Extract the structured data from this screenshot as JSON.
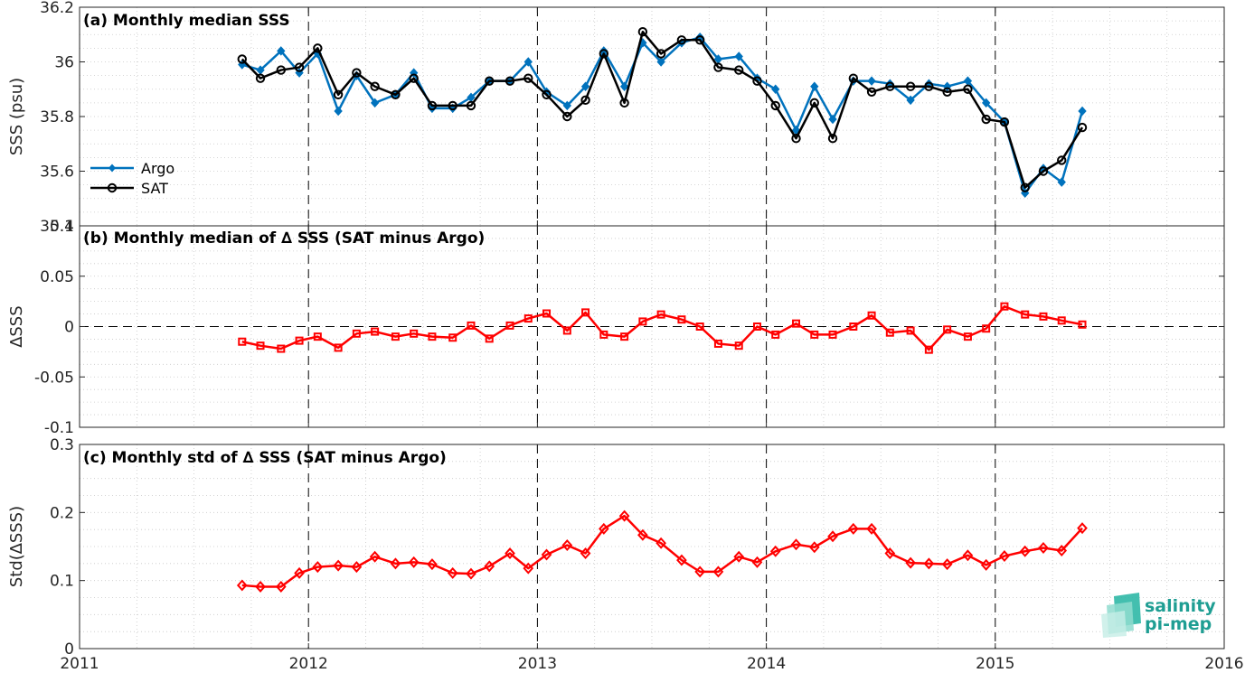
{
  "chart_data": [
    {
      "type": "line",
      "title": "(a) Monthly median SSS",
      "xlabel": "",
      "ylabel": "SSS (psu)",
      "xlim": [
        2011,
        2016
      ],
      "ylim": [
        35.4,
        36.2
      ],
      "xticks": [
        2011,
        2012,
        2013,
        2014,
        2015,
        2016
      ],
      "xtick_labels": [
        "2011",
        "2012",
        "2013",
        "2014",
        "2015",
        "2016"
      ],
      "yticks": [
        35.4,
        35.6,
        35.8,
        36.0,
        36.2
      ],
      "ytick_labels": [
        "35.4",
        "35.6",
        "35.8",
        "36",
        "36.2"
      ],
      "grid": true,
      "legend_position": "bottom-left",
      "x": [
        2011.71,
        2011.79,
        2011.88,
        2011.96,
        2012.04,
        2012.13,
        2012.21,
        2012.29,
        2012.38,
        2012.46,
        2012.54,
        2012.63,
        2012.71,
        2012.79,
        2012.88,
        2012.96,
        2013.04,
        2013.13,
        2013.21,
        2013.29,
        2013.38,
        2013.46,
        2013.54,
        2013.63,
        2013.71,
        2013.79,
        2013.88,
        2013.96,
        2014.04,
        2014.13,
        2014.21,
        2014.29,
        2014.38,
        2014.46,
        2014.54,
        2014.63,
        2014.71,
        2014.79,
        2014.88,
        2014.96,
        2015.04,
        2015.13,
        2015.21,
        2015.29,
        2015.38
      ],
      "series": [
        {
          "name": "Argo",
          "color": "#0072bd",
          "marker": "diamond",
          "values": [
            35.99,
            35.97,
            36.04,
            35.96,
            36.03,
            35.82,
            35.95,
            35.85,
            35.88,
            35.96,
            35.83,
            35.83,
            35.87,
            35.93,
            35.93,
            36.0,
            35.89,
            35.84,
            35.91,
            36.04,
            35.91,
            36.07,
            36.0,
            36.07,
            36.09,
            36.01,
            36.02,
            35.94,
            35.9,
            35.75,
            35.91,
            35.79,
            35.93,
            35.93,
            35.92,
            35.86,
            35.92,
            35.91,
            35.93,
            35.85,
            35.78,
            35.52,
            35.61,
            35.56,
            35.82
          ]
        },
        {
          "name": "SAT",
          "color": "#000000",
          "marker": "circle",
          "values": [
            36.01,
            35.94,
            35.97,
            35.98,
            36.05,
            35.88,
            35.96,
            35.91,
            35.88,
            35.94,
            35.84,
            35.84,
            35.84,
            35.93,
            35.93,
            35.94,
            35.88,
            35.8,
            35.86,
            36.03,
            35.85,
            36.11,
            36.03,
            36.08,
            36.08,
            35.98,
            35.97,
            35.93,
            35.84,
            35.72,
            35.85,
            35.72,
            35.94,
            35.89,
            35.91,
            35.91,
            35.91,
            35.89,
            35.9,
            35.79,
            35.78,
            35.54,
            35.6,
            35.64,
            35.76
          ]
        }
      ]
    },
    {
      "type": "line",
      "title": "(b) Monthly median of ∆ SSS (SAT minus Argo)",
      "xlabel": "",
      "ylabel": "∆SSS",
      "xlim": [
        2011,
        2016
      ],
      "ylim": [
        -0.1,
        0.1
      ],
      "xticks": [
        2011,
        2012,
        2013,
        2014,
        2015,
        2016
      ],
      "yticks": [
        -0.1,
        -0.05,
        0,
        0.05,
        0.1
      ],
      "ytick_labels": [
        "-0.1",
        "-0.05",
        "0",
        "0.05",
        "0.1"
      ],
      "grid": true,
      "x": [
        2011.71,
        2011.79,
        2011.88,
        2011.96,
        2012.04,
        2012.13,
        2012.21,
        2012.29,
        2012.38,
        2012.46,
        2012.54,
        2012.63,
        2012.71,
        2012.79,
        2012.88,
        2012.96,
        2013.04,
        2013.13,
        2013.21,
        2013.29,
        2013.38,
        2013.46,
        2013.54,
        2013.63,
        2013.71,
        2013.79,
        2013.88,
        2013.96,
        2014.04,
        2014.13,
        2014.21,
        2014.29,
        2014.38,
        2014.46,
        2014.54,
        2014.63,
        2014.71,
        2014.79,
        2014.88,
        2014.96,
        2015.04,
        2015.13,
        2015.21,
        2015.29,
        2015.38
      ],
      "series": [
        {
          "color": "#ff0000",
          "marker": "square",
          "values": [
            -0.015,
            -0.019,
            -0.022,
            -0.014,
            -0.01,
            -0.021,
            -0.007,
            -0.005,
            -0.01,
            -0.007,
            -0.01,
            -0.011,
            0.001,
            -0.012,
            0.001,
            0.008,
            0.013,
            -0.004,
            0.014,
            -0.008,
            -0.01,
            0.005,
            0.012,
            0.007,
            0.0,
            -0.017,
            -0.019,
            0.0,
            -0.008,
            0.003,
            -0.008,
            -0.008,
            0.0,
            0.011,
            -0.006,
            -0.004,
            -0.023,
            -0.003,
            -0.01,
            -0.002,
            0.02,
            0.012,
            0.01,
            0.006,
            0.002
          ]
        }
      ]
    },
    {
      "type": "line",
      "title": "(c) Monthly std of ∆ SSS (SAT minus Argo)",
      "xlabel": "",
      "ylabel": "Std(∆SSS)",
      "xlim": [
        2011,
        2016
      ],
      "ylim": [
        0,
        0.3
      ],
      "xticks": [
        2011,
        2012,
        2013,
        2014,
        2015,
        2016
      ],
      "xtick_labels": [
        "2011",
        "2012",
        "2013",
        "2014",
        "2015",
        "2016"
      ],
      "yticks": [
        0,
        0.1,
        0.2,
        0.3
      ],
      "ytick_labels": [
        "0",
        "0.1",
        "0.2",
        "0.3"
      ],
      "grid": true,
      "x": [
        2011.71,
        2011.79,
        2011.88,
        2011.96,
        2012.04,
        2012.13,
        2012.21,
        2012.29,
        2012.38,
        2012.46,
        2012.54,
        2012.63,
        2012.71,
        2012.79,
        2012.88,
        2012.96,
        2013.04,
        2013.13,
        2013.21,
        2013.29,
        2013.38,
        2013.46,
        2013.54,
        2013.63,
        2013.71,
        2013.79,
        2013.88,
        2013.96,
        2014.04,
        2014.13,
        2014.21,
        2014.29,
        2014.38,
        2014.46,
        2014.54,
        2014.63,
        2014.71,
        2014.79,
        2014.88,
        2014.96,
        2015.04,
        2015.13,
        2015.21,
        2015.29,
        2015.38
      ],
      "series": [
        {
          "color": "#ff0000",
          "marker": "diamond-open",
          "values": [
            0.093,
            0.091,
            0.091,
            0.111,
            0.12,
            0.122,
            0.12,
            0.135,
            0.125,
            0.127,
            0.124,
            0.111,
            0.11,
            0.121,
            0.14,
            0.118,
            0.138,
            0.152,
            0.14,
            0.176,
            0.195,
            0.167,
            0.155,
            0.13,
            0.113,
            0.113,
            0.135,
            0.127,
            0.143,
            0.153,
            0.149,
            0.165,
            0.176,
            0.176,
            0.14,
            0.126,
            0.125,
            0.124,
            0.137,
            0.123,
            0.136,
            0.143,
            0.148,
            0.144,
            0.177
          ]
        }
      ]
    }
  ],
  "logo": {
    "line1": "salinity",
    "line2": "pi-mep",
    "color": "#1f9e93"
  }
}
